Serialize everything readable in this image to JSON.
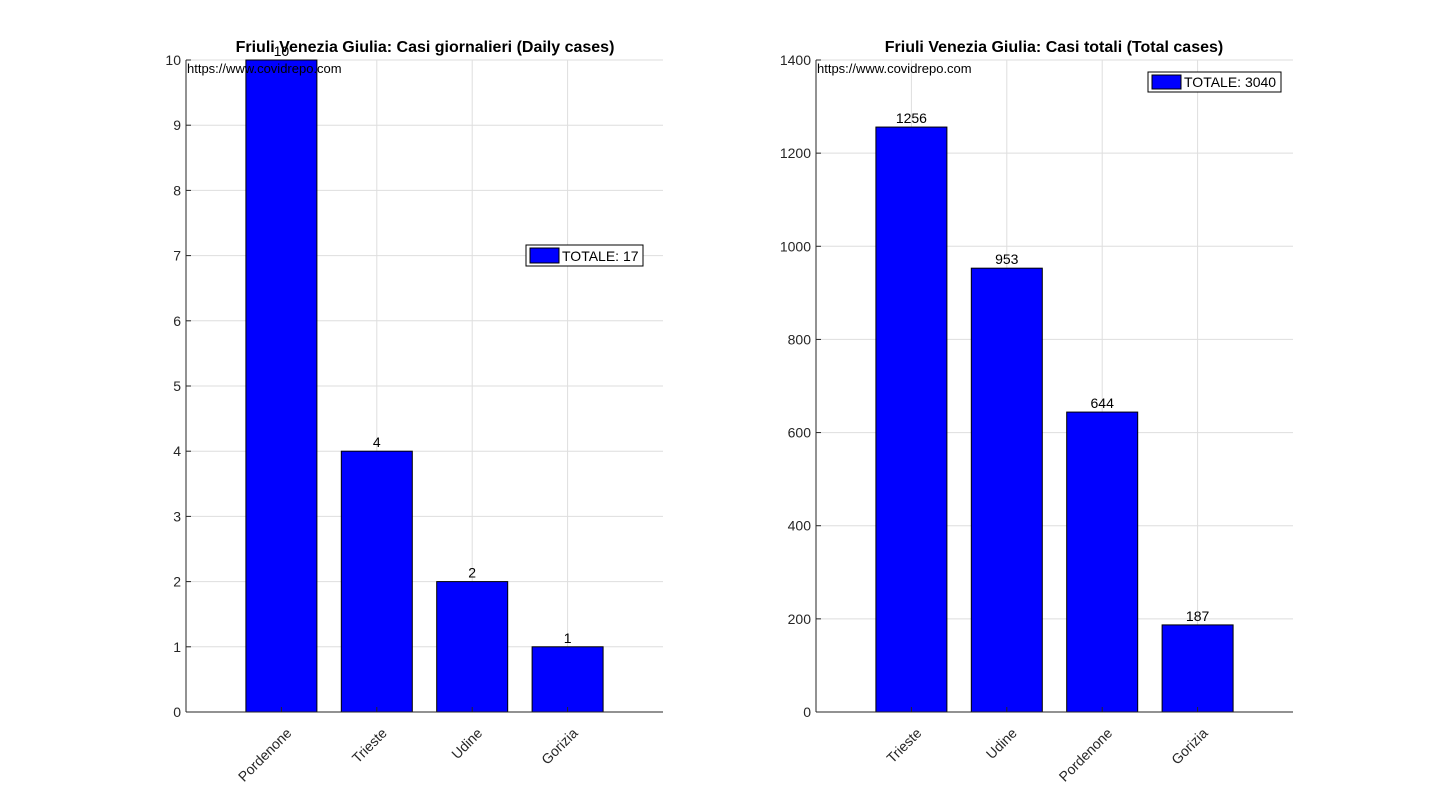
{
  "chart_data": [
    {
      "type": "bar",
      "title": "Friuli Venezia Giulia: Casi giornalieri (Daily cases)",
      "watermark": "https://www.covidrepo.com",
      "categories": [
        "Pordenone",
        "Trieste",
        "Udine",
        "Gorizia"
      ],
      "values": [
        10,
        4,
        2,
        1
      ],
      "data_labels": [
        "10",
        "4",
        "2",
        "1"
      ],
      "legend": "TOTALE: 17",
      "legend_position": "right",
      "ylim": [
        0,
        10
      ],
      "yticks": [
        0,
        1,
        2,
        3,
        4,
        5,
        6,
        7,
        8,
        9,
        10
      ],
      "grid": true,
      "bar_color": "#0000ff"
    },
    {
      "type": "bar",
      "title": "Friuli Venezia Giulia: Casi totali (Total cases)",
      "watermark": "https://www.covidrepo.com",
      "categories": [
        "Trieste",
        "Udine",
        "Pordenone",
        "Gorizia"
      ],
      "values": [
        1256,
        953,
        644,
        187
      ],
      "data_labels": [
        "1256",
        "953",
        "644",
        "187"
      ],
      "legend": "TOTALE: 3040",
      "legend_position": "top-right",
      "ylim": [
        0,
        1400
      ],
      "yticks": [
        0,
        200,
        400,
        600,
        800,
        1000,
        1200,
        1400
      ],
      "grid": true,
      "bar_color": "#0000ff"
    }
  ]
}
